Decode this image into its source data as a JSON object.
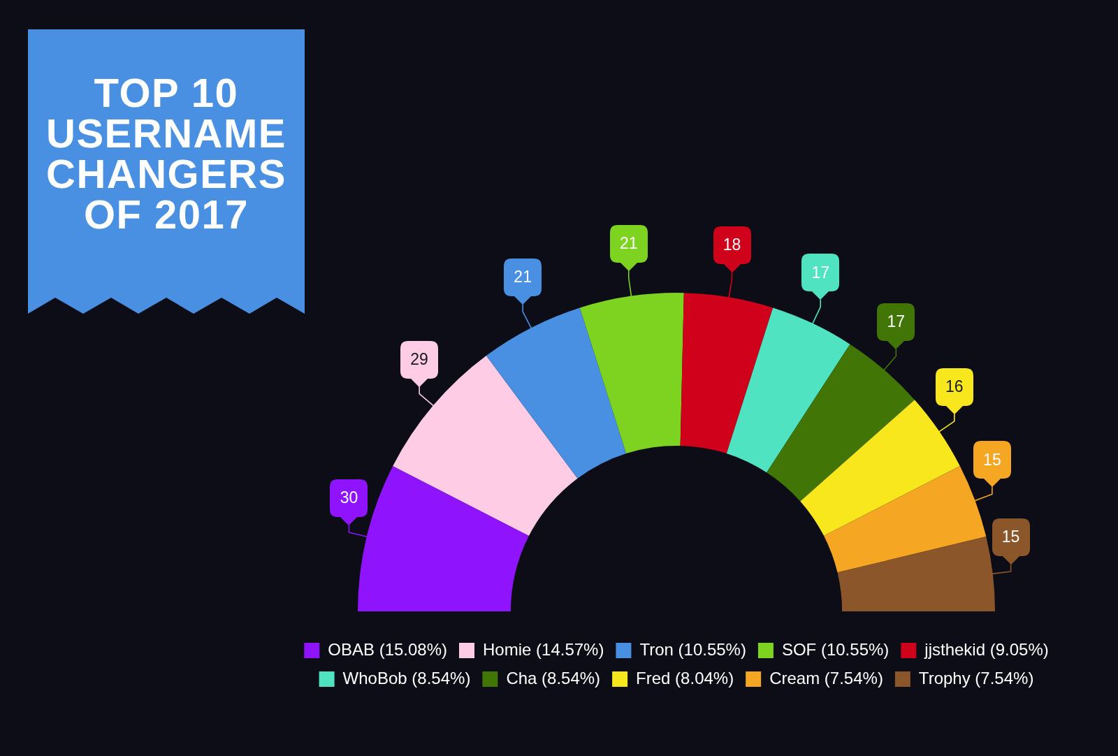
{
  "chart_data": {
    "type": "donut",
    "title": "TOP 10 USERNAME CHANGERS OF 2017",
    "categories": [
      "OBAB (15.08%)",
      "Homie (14.57%)",
      "Tron (10.55%)",
      "SOF (10.55%)",
      "jjsthekid (9.05%)",
      "WhoBob (8.54%)",
      "Cha (8.54%)",
      "Fred (8.04%)",
      "Cream (7.54%)",
      "Trophy (7.54%)"
    ],
    "values": [
      30,
      29,
      21,
      21,
      18,
      17,
      17,
      16,
      15,
      15
    ],
    "colors": [
      "#9013fe",
      "#ffcce6",
      "#4a90e2",
      "#7ed321",
      "#d0021b",
      "#50e3c2",
      "#417505",
      "#f8e71c",
      "#f5a623",
      "#8b572a"
    ],
    "data_labels": true,
    "legend": "bottom"
  }
}
